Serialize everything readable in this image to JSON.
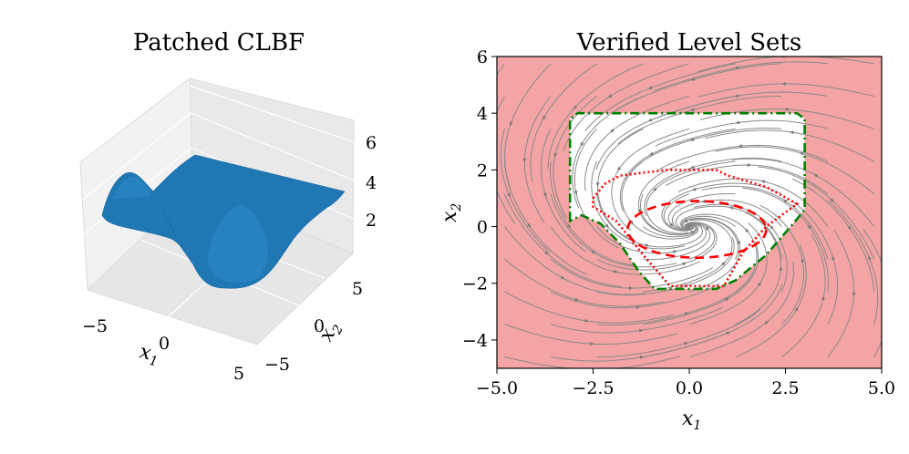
{
  "chart_data": [
    {
      "type": "surface3d",
      "title": "Patched CLBF",
      "xlabel": "x",
      "xlabel_sub": "1",
      "ylabel": "x",
      "ylabel_sub": "2",
      "x_ticks": [
        "−5",
        "0",
        "5"
      ],
      "y_ticks": [
        "5",
        "0",
        "−5"
      ],
      "z_ticks": [
        "2",
        "4",
        "6"
      ],
      "xlim": [
        -5,
        5
      ],
      "ylim": [
        -5,
        5
      ],
      "zlim": [
        1,
        6.5
      ],
      "surface_color": "#1f77b4",
      "grid": true
    },
    {
      "type": "streamplot",
      "title": "Verified Level Sets",
      "xlabel": "x",
      "xlabel_sub": "1",
      "ylabel": "x",
      "ylabel_sub": "2",
      "xlim": [
        -5,
        5
      ],
      "ylim": [
        -5,
        6
      ],
      "x_ticks": [
        "−5.0",
        "−2.5",
        "0.0",
        "2.5",
        "5.0"
      ],
      "x_tick_values": [
        -5,
        -2.5,
        0,
        2.5,
        5
      ],
      "y_ticks": [
        "−4",
        "−2",
        "0",
        "2",
        "4",
        "6"
      ],
      "y_tick_values": [
        -4,
        -2,
        0,
        2,
        4,
        6
      ],
      "unsafe_color": "#f4a4a4",
      "stream_color": "#808080",
      "level_sets": [
        {
          "style": "dashdot",
          "color": "#008000",
          "points": [
            [
              -3.1,
              0.2
            ],
            [
              -3.1,
              3.8
            ],
            [
              -2.9,
              4.0
            ],
            [
              2.8,
              4.0
            ],
            [
              3.0,
              3.8
            ],
            [
              3.0,
              0.6
            ],
            [
              2.7,
              0.1
            ],
            [
              2.0,
              -1.0
            ],
            [
              1.2,
              -1.9
            ],
            [
              0.7,
              -2.2
            ],
            [
              -0.9,
              -2.2
            ],
            [
              -1.3,
              -1.6
            ],
            [
              -1.8,
              -0.6
            ],
            [
              -2.3,
              0.1
            ],
            [
              -2.8,
              0.4
            ],
            [
              -3.1,
              0.2
            ]
          ]
        },
        {
          "style": "dotted",
          "color": "#ff0000",
          "points": [
            [
              -2.5,
              1.0
            ],
            [
              -2.2,
              1.5
            ],
            [
              -1.8,
              1.8
            ],
            [
              -0.6,
              2.0
            ],
            [
              0.7,
              2.0
            ],
            [
              1.0,
              1.8
            ],
            [
              2.0,
              1.4
            ],
            [
              2.8,
              0.8
            ],
            [
              2.0,
              0.0
            ],
            [
              1.4,
              -0.9
            ],
            [
              0.9,
              -2.1
            ],
            [
              -0.5,
              -2.1
            ],
            [
              -1.2,
              -1.0
            ],
            [
              -1.9,
              0.2
            ],
            [
              -2.5,
              0.7
            ],
            [
              -2.5,
              1.0
            ]
          ]
        },
        {
          "style": "dashed",
          "color": "#ff0000",
          "ellipse": {
            "cx": 0.2,
            "cy": -0.1,
            "rx": 1.8,
            "ry": 1.0
          }
        }
      ]
    }
  ]
}
